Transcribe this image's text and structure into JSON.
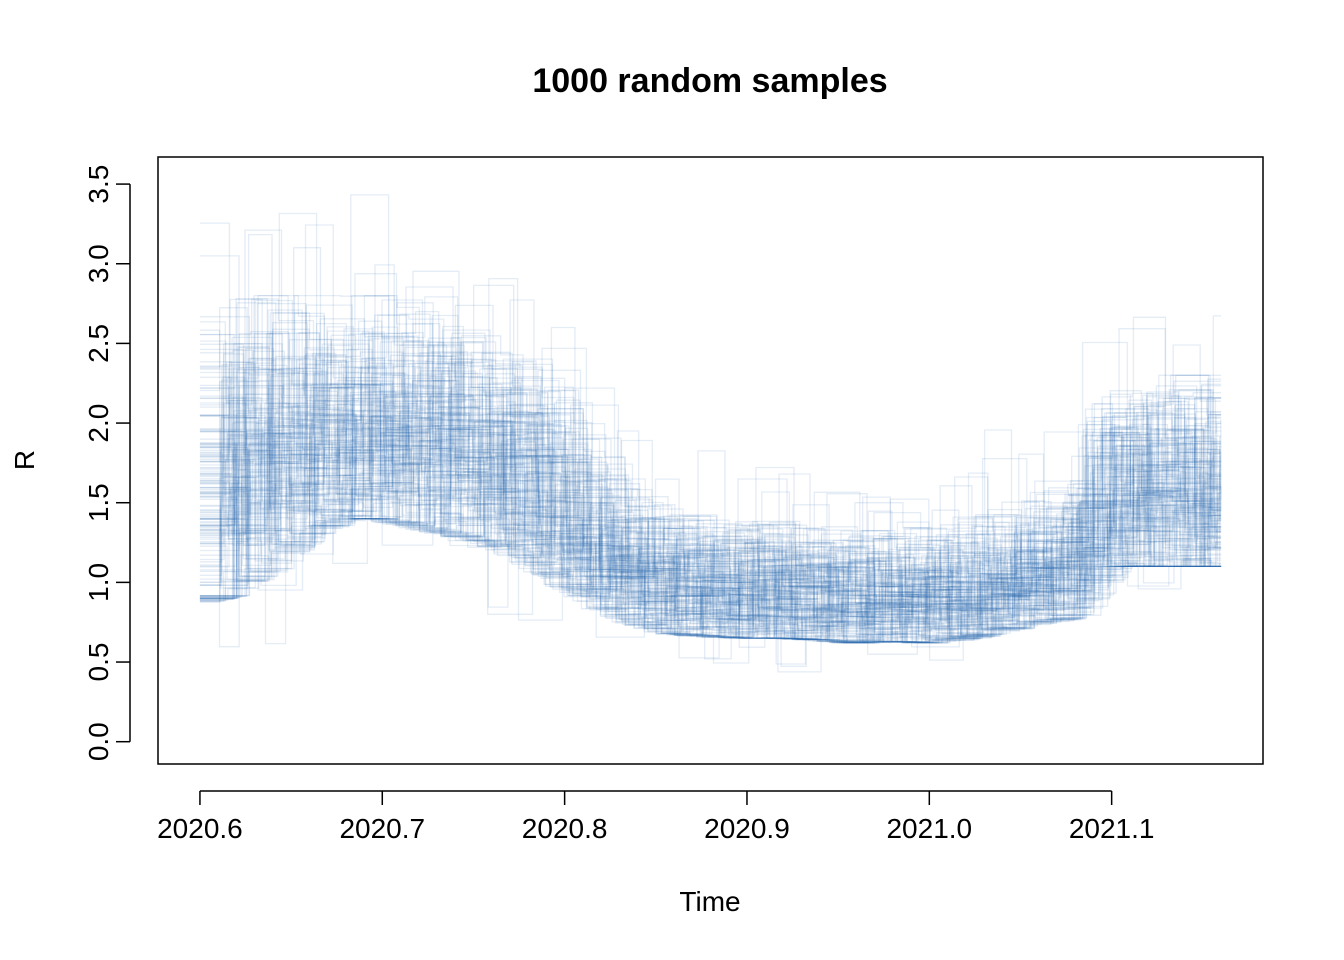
{
  "chart_data": {
    "type": "line",
    "title": "1000 random samples",
    "xlabel": "Time",
    "ylabel": "R",
    "xlim": [
      2020.577,
      2021.183
    ],
    "ylim": [
      -0.14,
      3.67
    ],
    "x_ticks": [
      2020.6,
      2020.7,
      2020.8,
      2020.9,
      2021.0,
      2021.1
    ],
    "x_tick_labels": [
      "2020.6",
      "2020.7",
      "2020.8",
      "2020.9",
      "2021.0",
      "2021.1"
    ],
    "y_ticks": [
      0.0,
      0.5,
      1.0,
      1.5,
      2.0,
      2.5,
      3.0,
      3.5
    ],
    "y_tick_labels": [
      "0.0",
      "0.5",
      "1.0",
      "1.5",
      "2.0",
      "2.5",
      "3.0",
      "3.5"
    ],
    "sample_count": 1000,
    "step_interval": 0.0192,
    "series_color": "#2166ac",
    "grid": false,
    "x": [
      2020.6,
      2020.62,
      2020.64,
      2020.66,
      2020.68,
      2020.7,
      2020.72,
      2020.74,
      2020.76,
      2020.78,
      2020.8,
      2020.82,
      2020.84,
      2020.86,
      2020.88,
      2020.9,
      2020.92,
      2020.94,
      2020.96,
      2020.98,
      2021.0,
      2021.02,
      2021.04,
      2021.06,
      2021.08,
      2021.1,
      2021.12,
      2021.14,
      2021.16
    ],
    "series": [
      {
        "values": [
          1.7,
          1.85,
          1.95,
          2.0,
          2.05,
          2.05,
          2.0,
          1.95,
          1.9,
          1.8,
          1.6,
          1.35,
          1.15,
          1.05,
          1.02,
          1.0,
          1.0,
          0.98,
          0.97,
          0.98,
          0.98,
          1.0,
          1.03,
          1.1,
          1.15,
          1.7,
          1.7,
          1.7,
          1.7
        ]
      },
      {
        "values": [
          0.85,
          0.95,
          1.1,
          1.3,
          1.4,
          1.4,
          1.35,
          1.3,
          1.25,
          1.15,
          1.0,
          0.85,
          0.75,
          0.68,
          0.66,
          0.65,
          0.65,
          0.64,
          0.62,
          0.63,
          0.62,
          0.65,
          0.7,
          0.75,
          0.78,
          1.1,
          1.1,
          1.1,
          1.1
        ]
      },
      {
        "values": [
          2.6,
          2.7,
          2.8,
          2.8,
          2.8,
          2.8,
          2.75,
          2.65,
          2.55,
          2.4,
          2.2,
          1.9,
          1.6,
          1.45,
          1.4,
          1.38,
          1.36,
          1.33,
          1.32,
          1.33,
          1.35,
          1.4,
          1.45,
          1.55,
          1.6,
          2.3,
          2.3,
          2.3,
          2.3
        ]
      },
      {
        "values": [
          0.45,
          0.45,
          0.55,
          0.75,
          0.8,
          0.78,
          0.76,
          0.74,
          0.72,
          0.7,
          0.65,
          0.55,
          0.5,
          0.47,
          0.46,
          0.45,
          0.44,
          0.43,
          0.42,
          0.42,
          0.42,
          0.44,
          0.45,
          0.5,
          0.52,
          0.9,
          0.9,
          0.9,
          0.9
        ]
      },
      {
        "values": [
          3.45,
          3.5,
          3.5,
          3.5,
          3.5,
          3.5,
          3.5,
          3.1,
          3.0,
          2.9,
          2.7,
          2.1,
          1.95,
          1.9,
          1.85,
          1.8,
          1.75,
          1.7,
          1.68,
          1.7,
          1.7,
          1.85,
          2.1,
          2.1,
          2.1,
          2.8,
          2.8,
          2.8,
          2.8
        ]
      }
    ]
  }
}
